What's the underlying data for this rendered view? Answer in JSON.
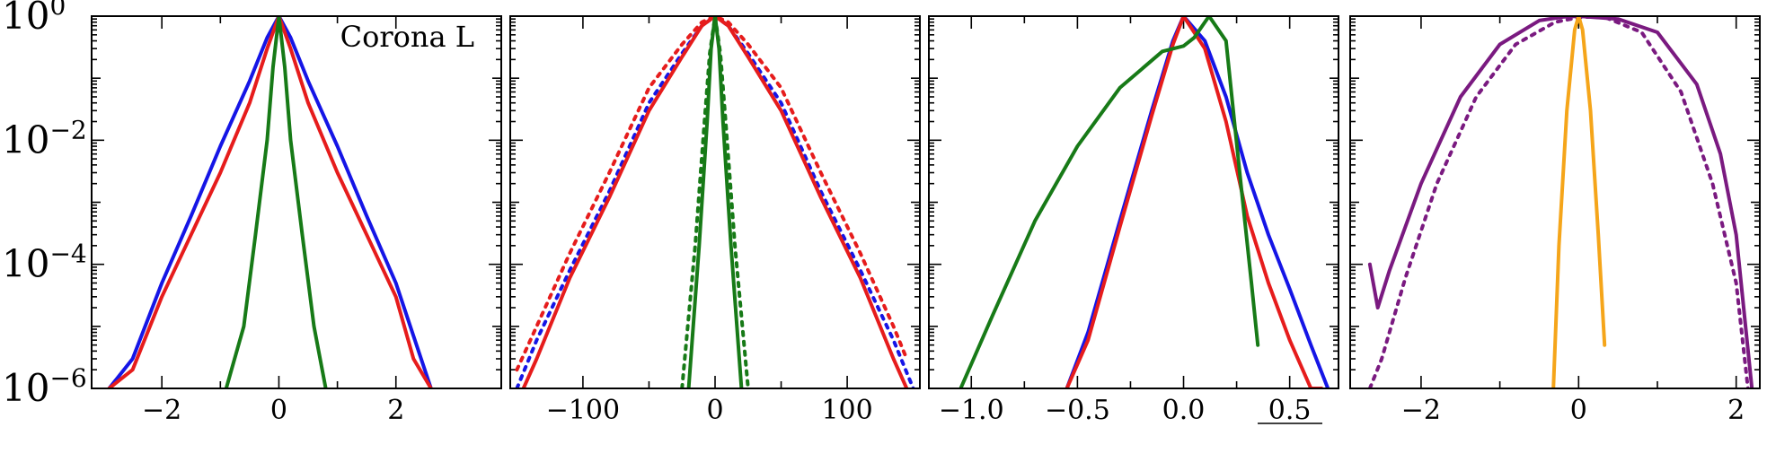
{
  "colors": {
    "blue": "#1515e6",
    "red": "#e61c1c",
    "green": "#177a17",
    "purple": "#7a1a80",
    "orange": "#f5a51a"
  },
  "chart_data": [
    {
      "type": "line",
      "annotation": "Corona L",
      "y_scale": "log",
      "ylim": [
        1e-06,
        1
      ],
      "xlim": [
        -3.2,
        3.8
      ],
      "yticks": [
        {
          "base": "10",
          "exp": "0",
          "value": 1
        },
        {
          "base": "10",
          "exp": "−2",
          "value": 0.01
        },
        {
          "base": "10",
          "exp": "−4",
          "value": 0.0001
        },
        {
          "base": "10",
          "exp": "−6",
          "value": 1e-06
        }
      ],
      "xticks": [
        {
          "value": -2,
          "label": "−2"
        },
        {
          "value": 0,
          "label": "0"
        },
        {
          "value": 2,
          "label": "2"
        }
      ],
      "series": [
        {
          "color": "blue",
          "dash": "solid",
          "x": [
            -2.9,
            -2.5,
            -2.0,
            -1.5,
            -1.0,
            -0.5,
            -0.2,
            0.0,
            0.2,
            0.5,
            1.0,
            1.5,
            2.0,
            2.3,
            2.6
          ],
          "y": [
            1e-06,
            3e-06,
            5e-05,
            0.0006,
            0.008,
            0.09,
            0.45,
            1.0,
            0.45,
            0.09,
            0.008,
            0.0006,
            5e-05,
            7e-06,
            1e-06
          ]
        },
        {
          "color": "red",
          "dash": "solid",
          "x": [
            -2.9,
            -2.5,
            -2.0,
            -1.5,
            -1.0,
            -0.5,
            -0.2,
            0.0,
            0.2,
            0.5,
            1.0,
            1.5,
            2.0,
            2.3,
            2.6
          ],
          "y": [
            1e-06,
            2e-06,
            3e-05,
            0.0003,
            0.003,
            0.04,
            0.3,
            1.0,
            0.3,
            0.04,
            0.003,
            0.0003,
            3e-05,
            3e-06,
            1e-06
          ]
        },
        {
          "color": "green",
          "dash": "solid",
          "x": [
            -0.9,
            -0.6,
            -0.4,
            -0.2,
            -0.1,
            0.0,
            0.1,
            0.2,
            0.4,
            0.6,
            0.8
          ],
          "y": [
            1e-06,
            1e-05,
            0.0003,
            0.01,
            0.15,
            1.0,
            0.15,
            0.01,
            0.0003,
            1e-05,
            1e-06
          ]
        }
      ]
    },
    {
      "type": "line",
      "y_scale": "log",
      "ylim": [
        1e-06,
        1
      ],
      "xlim": [
        -155,
        155
      ],
      "xticks": [
        {
          "value": -100,
          "label": "−100"
        },
        {
          "value": 0,
          "label": "0"
        },
        {
          "value": 100,
          "label": "100"
        }
      ],
      "series": [
        {
          "color": "blue",
          "dash": "dotted",
          "x": [
            -150,
            -135,
            -110,
            -80,
            -50,
            -25,
            -10,
            0,
            10,
            25,
            50,
            80,
            110,
            135,
            150
          ],
          "y": [
            1e-06,
            6e-06,
            8e-05,
            0.0015,
            0.04,
            0.25,
            0.7,
            1.0,
            0.7,
            0.25,
            0.04,
            0.0015,
            8e-05,
            6e-06,
            1e-06
          ]
        },
        {
          "color": "red",
          "dash": "dotted",
          "x": [
            -150,
            -135,
            -110,
            -80,
            -50,
            -25,
            -10,
            0,
            10,
            25,
            50,
            80,
            110,
            135,
            145
          ],
          "y": [
            2e-06,
            1e-05,
            0.00015,
            0.003,
            0.07,
            0.35,
            0.8,
            1.0,
            0.8,
            0.35,
            0.07,
            0.003,
            0.00015,
            1e-05,
            3e-06
          ]
        },
        {
          "color": "red",
          "dash": "solid",
          "x": [
            -145,
            -135,
            -110,
            -80,
            -50,
            -25,
            -10,
            0,
            10,
            25,
            50,
            80,
            110,
            135,
            145
          ],
          "y": [
            1e-06,
            3e-06,
            6e-05,
            0.0012,
            0.03,
            0.22,
            0.7,
            1.0,
            0.7,
            0.22,
            0.03,
            0.0012,
            6e-05,
            3e-06,
            1e-06
          ]
        },
        {
          "color": "green",
          "dash": "dotted",
          "x": [
            -25,
            -15,
            -8,
            -4,
            0,
            4,
            8,
            15,
            25
          ],
          "y": [
            1e-06,
            0.0002,
            0.02,
            0.25,
            1.0,
            0.25,
            0.02,
            0.0002,
            1e-06
          ]
        },
        {
          "color": "green",
          "dash": "solid",
          "x": [
            -20,
            -12,
            -6,
            -3,
            0,
            3,
            6,
            12,
            20
          ],
          "y": [
            1e-06,
            0.0002,
            0.02,
            0.3,
            1.0,
            0.3,
            0.02,
            0.0002,
            1e-06
          ]
        }
      ]
    },
    {
      "type": "line",
      "y_scale": "log",
      "ylim": [
        1e-06,
        1
      ],
      "xlim": [
        -1.2,
        0.73
      ],
      "xticks": [
        {
          "value": -1.0,
          "label": "−1.0"
        },
        {
          "value": -0.5,
          "label": "−0.5"
        },
        {
          "value": 0.0,
          "label": "0.0"
        },
        {
          "value": 0.5,
          "label": "0.5"
        }
      ],
      "series": [
        {
          "color": "blue",
          "dash": "solid",
          "x": [
            -0.55,
            -0.45,
            -0.3,
            -0.15,
            -0.05,
            0.0,
            0.1,
            0.2,
            0.3,
            0.4,
            0.5,
            0.6,
            0.68
          ],
          "y": [
            1e-06,
            8e-06,
            0.0005,
            0.03,
            0.4,
            1.0,
            0.4,
            0.05,
            0.003,
            0.0003,
            4e-05,
            5e-06,
            1e-06
          ]
        },
        {
          "color": "red",
          "dash": "solid",
          "x": [
            -0.55,
            -0.45,
            -0.3,
            -0.15,
            -0.05,
            0.0,
            0.1,
            0.2,
            0.3,
            0.4,
            0.5,
            0.6,
            0.65
          ],
          "y": [
            1e-06,
            6e-06,
            0.0004,
            0.025,
            0.35,
            1.0,
            0.3,
            0.02,
            0.0006,
            5e-05,
            6e-06,
            1e-06,
            1e-06
          ]
        },
        {
          "color": "green",
          "dash": "solid",
          "x": [
            -1.05,
            -0.9,
            -0.7,
            -0.5,
            -0.3,
            -0.1,
            0.0,
            0.05,
            0.12,
            0.2,
            0.27,
            0.32,
            0.35
          ],
          "y": [
            1e-06,
            1.5e-05,
            0.0005,
            0.008,
            0.07,
            0.27,
            0.33,
            0.45,
            1.0,
            0.4,
            0.002,
            5e-05,
            5e-06
          ]
        }
      ]
    },
    {
      "type": "line",
      "y_scale": "log",
      "ylim": [
        1e-06,
        1
      ],
      "xlim": [
        -2.9,
        2.3
      ],
      "xticks": [
        {
          "value": -2,
          "label": "−2"
        },
        {
          "value": 0,
          "label": "0"
        },
        {
          "value": 2,
          "label": "2"
        }
      ],
      "series": [
        {
          "color": "purple",
          "dash": "solid",
          "x": [
            -2.65,
            -2.55,
            -2.4,
            -2.0,
            -1.5,
            -1.0,
            -0.5,
            -0.2,
            0.0,
            0.5,
            1.0,
            1.5,
            1.8,
            2.0,
            2.2
          ],
          "y": [
            0.0001,
            2e-05,
            8e-05,
            0.002,
            0.05,
            0.35,
            0.85,
            0.97,
            1.0,
            0.9,
            0.55,
            0.08,
            0.006,
            0.0003,
            1e-06
          ]
        },
        {
          "color": "purple",
          "dash": "dotted",
          "x": [
            -2.65,
            -2.5,
            -2.2,
            -1.8,
            -1.3,
            -0.8,
            -0.3,
            0.0,
            0.3,
            0.8,
            1.3,
            1.7,
            2.0,
            2.15
          ],
          "y": [
            1e-06,
            3e-06,
            6e-05,
            0.002,
            0.05,
            0.35,
            0.8,
            0.95,
            1.0,
            0.55,
            0.06,
            0.002,
            5e-05,
            1e-06
          ]
        },
        {
          "color": "orange",
          "dash": "solid",
          "x": [
            -0.32,
            -0.25,
            -0.15,
            -0.05,
            0.0,
            0.05,
            0.15,
            0.25,
            0.33
          ],
          "y": [
            1e-06,
            0.0002,
            0.03,
            0.6,
            1.0,
            0.6,
            0.03,
            0.0003,
            5e-06
          ]
        }
      ]
    }
  ]
}
